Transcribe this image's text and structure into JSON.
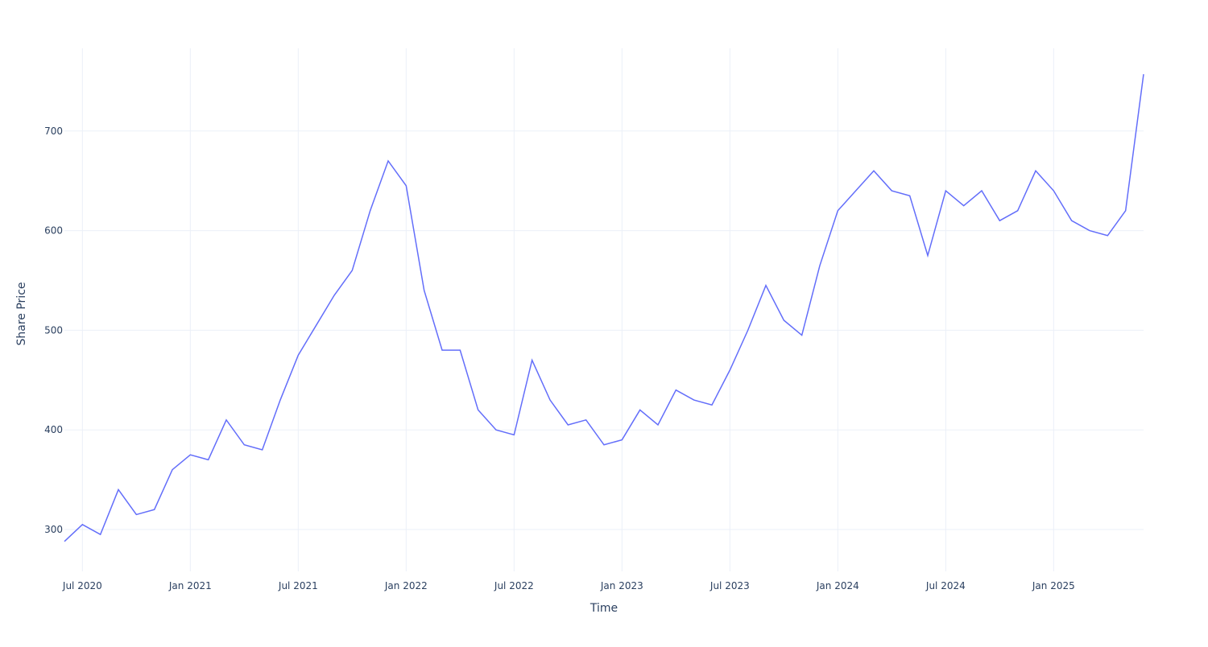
{
  "chart_data": {
    "type": "line",
    "x_label": "Time",
    "y_label": "Share Price",
    "x": [
      "2020-06",
      "2020-07",
      "2020-08",
      "2020-09",
      "2020-10",
      "2020-11",
      "2020-12",
      "2021-01",
      "2021-02",
      "2021-03",
      "2021-04",
      "2021-05",
      "2021-06",
      "2021-07",
      "2021-08",
      "2021-09",
      "2021-10",
      "2021-11",
      "2021-12",
      "2022-01",
      "2022-02",
      "2022-03",
      "2022-04",
      "2022-05",
      "2022-06",
      "2022-07",
      "2022-08",
      "2022-09",
      "2022-10",
      "2022-11",
      "2022-12",
      "2023-01",
      "2023-02",
      "2023-03",
      "2023-04",
      "2023-05",
      "2023-06",
      "2023-07",
      "2023-08",
      "2023-09",
      "2023-10",
      "2023-11",
      "2023-12",
      "2024-01",
      "2024-02",
      "2024-03",
      "2024-04",
      "2024-05",
      "2024-06",
      "2024-07",
      "2024-08",
      "2024-09",
      "2024-10",
      "2024-11",
      "2024-12",
      "2025-01",
      "2025-02",
      "2025-03",
      "2025-04",
      "2025-05",
      "2025-06"
    ],
    "series": [
      {
        "name": "Share Price",
        "color": "#636efa",
        "values": [
          288,
          305,
          295,
          340,
          315,
          320,
          360,
          375,
          370,
          410,
          385,
          380,
          430,
          475,
          505,
          535,
          560,
          620,
          670,
          645,
          540,
          480,
          480,
          420,
          400,
          395,
          470,
          430,
          405,
          410,
          385,
          390,
          420,
          405,
          440,
          430,
          425,
          460,
          500,
          545,
          510,
          495,
          565,
          620,
          640,
          660,
          640,
          635,
          575,
          640,
          625,
          640,
          610,
          620,
          660,
          640,
          610,
          600,
          595,
          620,
          757
        ]
      }
    ],
    "xlim": [
      "2020-06",
      "2025-06"
    ],
    "xticks": [
      {
        "value": "2020-07",
        "label": "Jul 2020"
      },
      {
        "value": "2021-01",
        "label": "Jan 2021"
      },
      {
        "value": "2021-07",
        "label": "Jul 2021"
      },
      {
        "value": "2022-01",
        "label": "Jan 2022"
      },
      {
        "value": "2022-07",
        "label": "Jul 2022"
      },
      {
        "value": "2023-01",
        "label": "Jan 2023"
      },
      {
        "value": "2023-07",
        "label": "Jul 2023"
      },
      {
        "value": "2024-01",
        "label": "Jan 2024"
      },
      {
        "value": "2024-07",
        "label": "Jul 2024"
      },
      {
        "value": "2025-01",
        "label": "Jan 2025"
      }
    ],
    "ylim": [
      258,
      783
    ],
    "yticks": [
      300,
      400,
      500,
      600,
      700
    ],
    "grid": true
  }
}
